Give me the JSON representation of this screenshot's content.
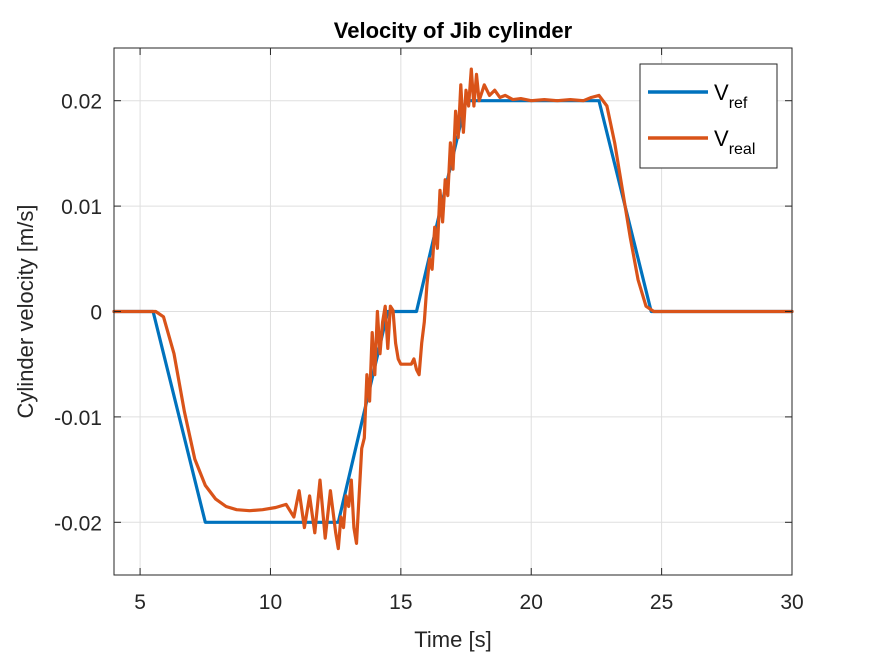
{
  "chart_data": {
    "type": "line",
    "title": "Velocity of Jib cylinder",
    "xlabel": "Time [s]",
    "ylabel": "Cylinder velocity [m/s]",
    "xlim": [
      4,
      30
    ],
    "ylim": [
      -0.025,
      0.025
    ],
    "x_ticks": [
      5,
      10,
      15,
      20,
      25,
      30
    ],
    "x_tick_labels": [
      "5",
      "10",
      "15",
      "20",
      "25",
      "30"
    ],
    "y_ticks": [
      -0.02,
      -0.01,
      0,
      0.01,
      0.02
    ],
    "y_tick_labels": [
      "-0.02",
      "-0.01",
      "0",
      "0.01",
      "0.02"
    ],
    "grid": true,
    "legend_position": "top-right",
    "series": [
      {
        "name": "V_ref",
        "legend_main": "V",
        "legend_sub": "ref",
        "color": "#0072BD",
        "x": [
          4,
          5.5,
          7.5,
          12.6,
          14.5,
          15.6,
          17.5,
          22.6,
          24.6,
          30
        ],
        "y": [
          0,
          0,
          -0.02,
          -0.02,
          0,
          0,
          0.02,
          0.02,
          0,
          0
        ]
      },
      {
        "name": "V_real",
        "legend_main": "V",
        "legend_sub": "real",
        "color": "#D95319",
        "x": [
          4,
          5.6,
          5.9,
          6.3,
          6.7,
          7.1,
          7.5,
          7.9,
          8.3,
          8.7,
          9.2,
          9.7,
          10.2,
          10.6,
          10.9,
          11.1,
          11.3,
          11.5,
          11.7,
          11.9,
          12.1,
          12.3,
          12.5,
          12.6,
          12.7,
          12.8,
          12.9,
          13.0,
          13.1,
          13.2,
          13.3,
          13.4,
          13.5,
          13.6,
          13.7,
          13.8,
          13.9,
          14.0,
          14.1,
          14.2,
          14.3,
          14.4,
          14.5,
          14.6,
          14.7,
          14.8,
          14.9,
          15.0,
          15.2,
          15.4,
          15.5,
          15.6,
          15.7,
          15.8,
          15.9,
          16.0,
          16.1,
          16.2,
          16.3,
          16.4,
          16.5,
          16.6,
          16.7,
          16.8,
          16.9,
          17.0,
          17.1,
          17.2,
          17.3,
          17.4,
          17.5,
          17.6,
          17.7,
          17.8,
          17.9,
          18.0,
          18.2,
          18.4,
          18.6,
          18.8,
          19.0,
          19.3,
          19.6,
          20.0,
          20.5,
          21.0,
          21.5,
          22.0,
          22.3,
          22.6,
          22.9,
          23.2,
          23.5,
          23.8,
          24.1,
          24.4,
          24.7,
          25.0,
          26,
          28,
          30
        ],
        "y": [
          0,
          0,
          -0.0005,
          -0.004,
          -0.0095,
          -0.014,
          -0.0165,
          -0.0178,
          -0.0185,
          -0.0188,
          -0.0189,
          -0.0188,
          -0.0186,
          -0.0183,
          -0.0195,
          -0.017,
          -0.0205,
          -0.0175,
          -0.021,
          -0.016,
          -0.0215,
          -0.017,
          -0.021,
          -0.0225,
          -0.0195,
          -0.0205,
          -0.0175,
          -0.0185,
          -0.016,
          -0.0205,
          -0.022,
          -0.0175,
          -0.013,
          -0.012,
          -0.006,
          -0.0085,
          -0.002,
          -0.006,
          0,
          -0.004,
          -0.001,
          0.0005,
          -0.0035,
          0.0005,
          0.0001,
          -0.003,
          -0.0045,
          -0.005,
          -0.005,
          -0.005,
          -0.0045,
          -0.0055,
          -0.006,
          -0.003,
          -0.001,
          0.0025,
          0.005,
          0.004,
          0.008,
          0.006,
          0.0115,
          0.0085,
          0.0125,
          0.011,
          0.016,
          0.0135,
          0.019,
          0.0165,
          0.0215,
          0.017,
          0.021,
          0.0195,
          0.023,
          0.0195,
          0.0225,
          0.02,
          0.0215,
          0.0205,
          0.021,
          0.0203,
          0.0205,
          0.0201,
          0.0202,
          0.02,
          0.0201,
          0.02,
          0.0201,
          0.02,
          0.0203,
          0.0205,
          0.0195,
          0.016,
          0.0115,
          0.007,
          0.003,
          0.0005,
          0,
          0,
          0,
          0,
          0
        ]
      }
    ]
  }
}
